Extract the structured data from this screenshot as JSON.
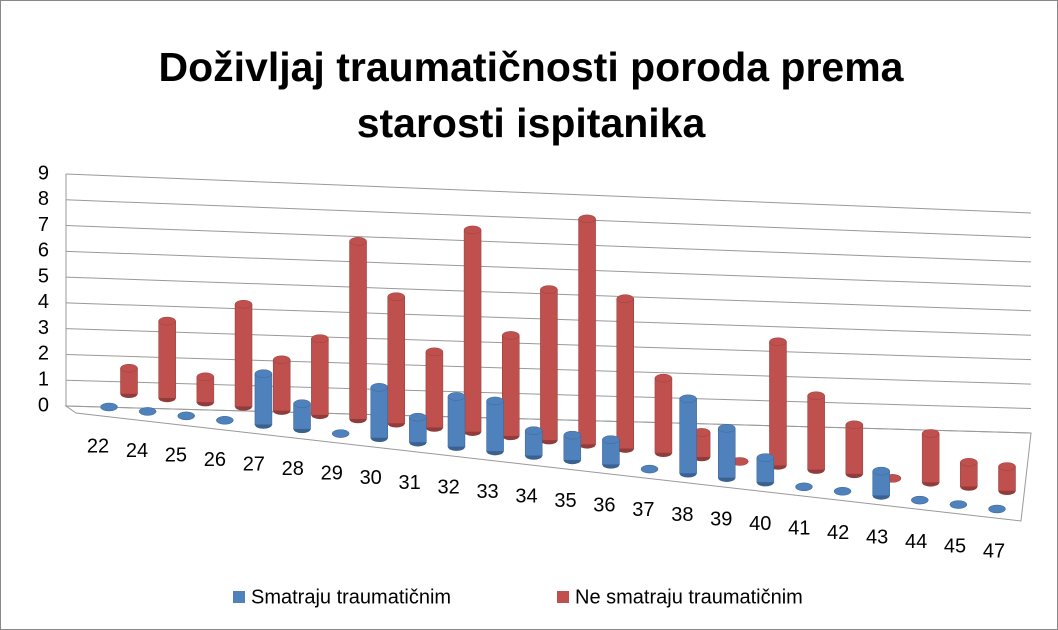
{
  "chart_data": {
    "type": "bar3d",
    "title": "Doživljaj traumatičnosti poroda prema starosti ispitanika",
    "categories": [
      "22",
      "24",
      "25",
      "26",
      "27",
      "28",
      "29",
      "30",
      "31",
      "32",
      "33",
      "34",
      "35",
      "36",
      "37",
      "38",
      "39",
      "40",
      "41",
      "42",
      "43",
      "44",
      "45",
      "47"
    ],
    "series": [
      {
        "name": "Smatraju traumatičnim",
        "color": "#4f81bd",
        "values": [
          0,
          0,
          0,
          0,
          2,
          1,
          0,
          2,
          1,
          2,
          2,
          1,
          1,
          1,
          0,
          3,
          2,
          1,
          0,
          0,
          1,
          0,
          0,
          0
        ]
      },
      {
        "name": "Ne smatraju traumatičnim",
        "color": "#c0504d",
        "values": [
          1,
          3,
          1,
          4,
          2,
          3,
          7,
          5,
          3,
          8,
          4,
          6,
          9,
          6,
          3,
          1,
          0,
          5,
          3,
          2,
          0,
          2,
          1,
          1
        ]
      }
    ],
    "ylim": [
      0,
      9
    ],
    "yticks": [
      0,
      1,
      2,
      3,
      4,
      5,
      6,
      7,
      8,
      9
    ],
    "grid": true,
    "legend": "bottom"
  }
}
